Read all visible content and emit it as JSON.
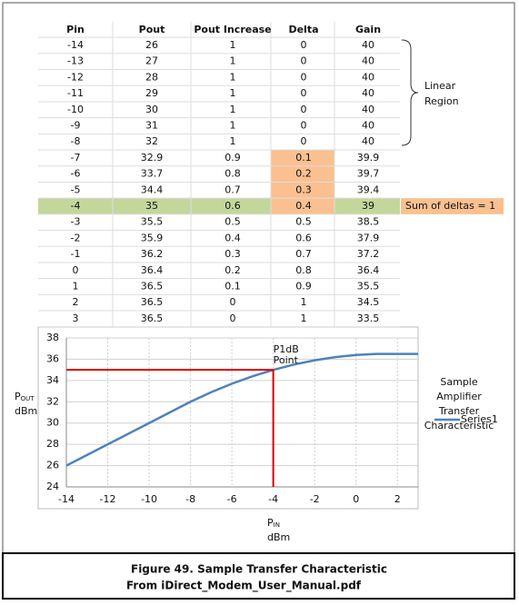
{
  "table": {
    "header": [
      "Pin",
      "Pout",
      "Pout Increase",
      "Delta",
      "Gain"
    ],
    "rows": [
      [
        -14,
        26,
        1,
        0,
        40
      ],
      [
        -13,
        27,
        1,
        0,
        40
      ],
      [
        -12,
        28,
        1,
        0,
        40
      ],
      [
        -11,
        29,
        1,
        0,
        40
      ],
      [
        -10,
        30,
        1,
        0,
        40
      ],
      [
        -9,
        31,
        1,
        0,
        40
      ],
      [
        -8,
        32,
        1,
        0,
        40
      ],
      [
        -7,
        32.9,
        0.9,
        0.1,
        39.9
      ],
      [
        -6,
        33.7,
        0.8,
        0.2,
        39.7
      ],
      [
        -5,
        34.4,
        0.7,
        0.3,
        39.4
      ],
      [
        -4,
        35,
        0.6,
        0.4,
        39
      ],
      [
        -3,
        35.5,
        0.5,
        0.5,
        38.5
      ],
      [
        -2,
        35.9,
        0.4,
        0.6,
        37.9
      ],
      [
        -1,
        36.2,
        0.3,
        0.7,
        37.2
      ],
      [
        0,
        36.4,
        0.2,
        0.8,
        36.4
      ],
      [
        1,
        36.5,
        0.1,
        0.9,
        35.5
      ],
      [
        2,
        36.5,
        0,
        1,
        34.5
      ],
      [
        3,
        36.5,
        0,
        1,
        33.5
      ]
    ],
    "brace_label": [
      "Linear",
      "Region"
    ],
    "sum_note": "Sum of deltas = 1"
  },
  "chart": {
    "series_name": "Series1",
    "color": "#4f81bd",
    "xlim": [
      -14,
      3
    ],
    "xticks": [
      -14,
      -12,
      -10,
      -8,
      -6,
      -4,
      -2,
      0,
      2
    ],
    "ylim": [
      24,
      38
    ],
    "yticks": [
      24,
      26,
      28,
      30,
      32,
      34,
      36,
      38
    ],
    "y_label": {
      "main": "P",
      "sub": "OUT",
      "unit": "dBm"
    },
    "x_label": {
      "main": "P",
      "sub": "IN",
      "unit": "dBm"
    },
    "marker": {
      "x": -4,
      "y": 35,
      "label": [
        "P1dB",
        "Point"
      ],
      "color": "#e00000"
    },
    "side_text": [
      "Sample",
      "Amplifier",
      "Transfer",
      "Characteristic"
    ]
  },
  "caption": [
    "Figure 49. Sample Transfer Characteristic",
    "From iDirect_Modem_User_Manual.pdf"
  ]
}
